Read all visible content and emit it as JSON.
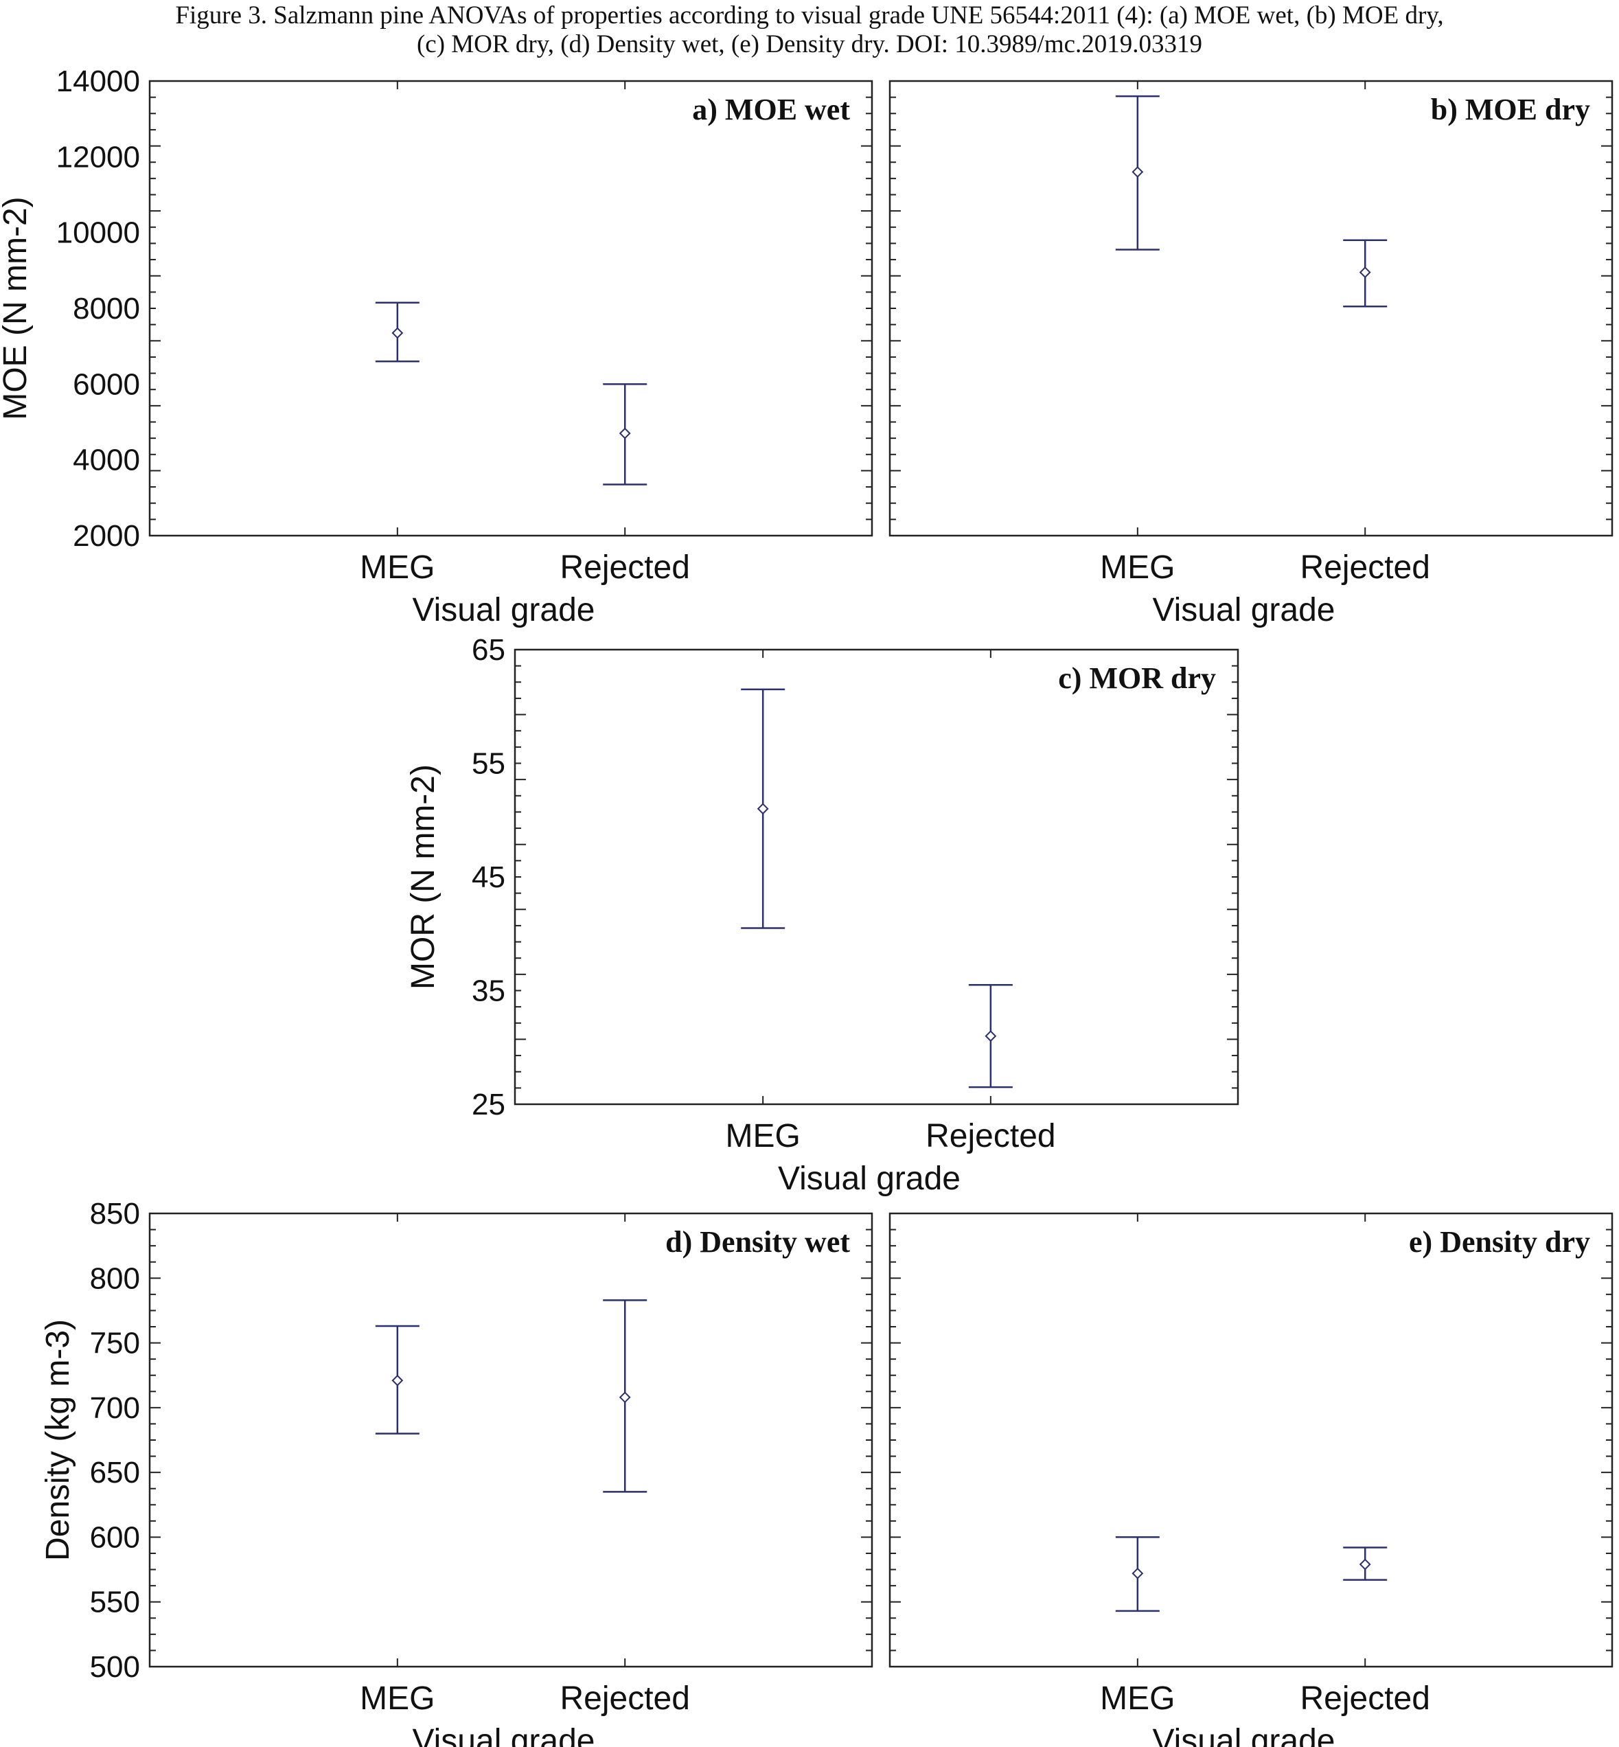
{
  "caption": {
    "line1": "Figure 3.    Salzmann pine ANOVAs of properties according to visual grade UNE 56544:2011 (4): (a) MOE wet, (b) MOE dry,",
    "line2": "(c) MOR dry, (d) Density wet, (e) Density dry.  DOI: 10.3989/mc.2019.03319"
  },
  "colors": {
    "interval": "#2a2f6e",
    "axis": "#222222"
  },
  "chart_data": [
    {
      "id": "a",
      "type": "errorbar",
      "title": "a) MOE wet",
      "xlabel": "Visual grade",
      "ylabel": "MOE (N mm-2)",
      "categories": [
        "MEG",
        "Rejected"
      ],
      "ylim": [
        2000,
        14000
      ],
      "yticks": [
        2000,
        4000,
        6000,
        8000,
        10000,
        12000,
        14000
      ],
      "mean": [
        7350,
        4700
      ],
      "lower": [
        6600,
        3350
      ],
      "upper": [
        8150,
        6000
      ]
    },
    {
      "id": "b",
      "type": "errorbar",
      "title": "b) MOE dry",
      "xlabel": "Visual grade",
      "ylabel": "",
      "categories": [
        "MEG",
        "Rejected"
      ],
      "ylim": [
        2000,
        14000
      ],
      "yticks": [],
      "mean": [
        11600,
        8950
      ],
      "lower": [
        9550,
        8050
      ],
      "upper": [
        13600,
        9800
      ]
    },
    {
      "id": "c",
      "type": "errorbar",
      "title": "c) MOR dry",
      "xlabel": "Visual grade",
      "ylabel": "MOR (N mm-2)",
      "categories": [
        "MEG",
        "Rejected"
      ],
      "ylim": [
        25,
        65
      ],
      "yticks": [
        25,
        35,
        45,
        55,
        65
      ],
      "mean": [
        51,
        31
      ],
      "lower": [
        40.5,
        26.5
      ],
      "upper": [
        61.5,
        35.5
      ]
    },
    {
      "id": "d",
      "type": "errorbar",
      "title": "d) Density wet",
      "xlabel": "Visual grade",
      "ylabel": "Density (kg m-3)",
      "categories": [
        "MEG",
        "Rejected"
      ],
      "ylim": [
        500,
        850
      ],
      "yticks": [
        500,
        550,
        600,
        650,
        700,
        750,
        800,
        850
      ],
      "mean": [
        721,
        708
      ],
      "lower": [
        680,
        635
      ],
      "upper": [
        763,
        783
      ]
    },
    {
      "id": "e",
      "type": "errorbar",
      "title": "e) Density dry",
      "xlabel": "Visual grade",
      "ylabel": "",
      "categories": [
        "MEG",
        "Rejected"
      ],
      "ylim": [
        500,
        850
      ],
      "yticks": [],
      "mean": [
        572,
        579
      ],
      "lower": [
        543,
        567
      ],
      "upper": [
        600,
        592
      ]
    }
  ]
}
